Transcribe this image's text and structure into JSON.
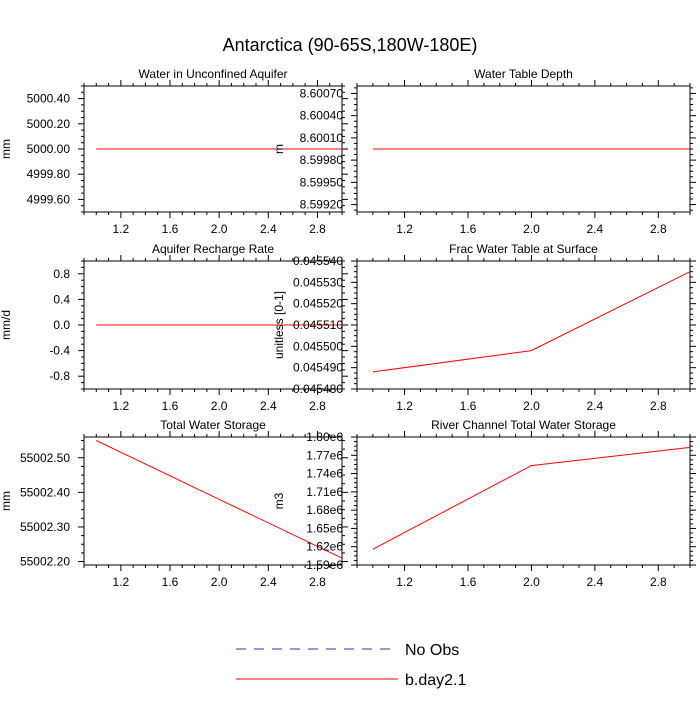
{
  "page": {
    "title": "Antarctica (90-65S,180W-180E)"
  },
  "legend": {
    "items": [
      {
        "label": "No Obs",
        "style": "dashed",
        "color": "#3333aa"
      },
      {
        "label": "b.day2.1",
        "style": "solid",
        "color": "#ff0000"
      }
    ]
  },
  "colors": {
    "series": "#ff0000",
    "no_obs": "#3333aa",
    "axis": "#000000"
  },
  "chart_data": [
    {
      "type": "line",
      "title": "Water in Unconfined Aquifer",
      "xlabel": "",
      "ylabel": "mm",
      "xlim": [
        0.9,
        3.0
      ],
      "ylim": [
        4999.5,
        5000.5
      ],
      "xticks": [
        1.2,
        1.6,
        2.0,
        2.4,
        2.8
      ],
      "xtick_labels": [
        "1.2",
        "1.6",
        "2.0",
        "2.4",
        "2.8"
      ],
      "yticks": [
        4999.6,
        4999.8,
        5000.0,
        5000.2,
        5000.4
      ],
      "ytick_labels": [
        "4999.60",
        "4999.80",
        "5000.00",
        "5000.20",
        "5000.40"
      ],
      "series": [
        {
          "name": "b.day2.1",
          "x": [
            1.0,
            2.0,
            3.0
          ],
          "y": [
            5000.0,
            5000.0,
            5000.0
          ]
        }
      ]
    },
    {
      "type": "line",
      "title": "Water Table Depth",
      "xlabel": "",
      "ylabel": "m",
      "xlim": [
        0.9,
        3.0
      ],
      "ylim": [
        8.5991,
        8.6008
      ],
      "xticks": [
        1.2,
        1.6,
        2.0,
        2.4,
        2.8
      ],
      "xtick_labels": [
        "1.2",
        "1.6",
        "2.0",
        "2.4",
        "2.8"
      ],
      "yticks": [
        8.5992,
        8.5995,
        8.5998,
        8.6001,
        8.6004,
        8.6007
      ],
      "ytick_labels": [
        "8.59920",
        "8.59950",
        "8.59980",
        "8.60010",
        "8.60040",
        "8.60070"
      ],
      "series": [
        {
          "name": "b.day2.1",
          "x": [
            1.0,
            2.0,
            3.0
          ],
          "y": [
            8.59995,
            8.59995,
            8.59995
          ]
        }
      ]
    },
    {
      "type": "line",
      "title": "Aquifer Recharge Rate",
      "xlabel": "",
      "ylabel": "mm/d",
      "xlim": [
        0.9,
        3.0
      ],
      "ylim": [
        -1.0,
        1.0
      ],
      "xticks": [
        1.2,
        1.6,
        2.0,
        2.4,
        2.8
      ],
      "xtick_labels": [
        "1.2",
        "1.6",
        "2.0",
        "2.4",
        "2.8"
      ],
      "yticks": [
        -0.8,
        -0.4,
        0.0,
        0.4,
        0.8
      ],
      "ytick_labels": [
        "-0.8",
        "-0.4",
        "0.0",
        "0.4",
        "0.8"
      ],
      "series": [
        {
          "name": "b.day2.1",
          "x": [
            1.0,
            2.0,
            3.0
          ],
          "y": [
            0.0,
            0.0,
            0.0
          ]
        }
      ]
    },
    {
      "type": "line",
      "title": "Frac Water Table at Surface",
      "xlabel": "",
      "ylabel": "unitless [0-1]",
      "xlim": [
        0.9,
        3.0
      ],
      "ylim": [
        0.04548,
        0.04554
      ],
      "xticks": [
        1.2,
        1.6,
        2.0,
        2.4,
        2.8
      ],
      "xtick_labels": [
        "1.2",
        "1.6",
        "2.0",
        "2.4",
        "2.8"
      ],
      "yticks": [
        0.04548,
        0.04549,
        0.0455,
        0.04551,
        0.04552,
        0.04553,
        0.04554
      ],
      "ytick_labels": [
        "0.045480",
        "0.045490",
        "0.045500",
        "0.045510",
        "0.045520",
        "0.045530",
        "0.045540"
      ],
      "series": [
        {
          "name": "b.day2.1",
          "x": [
            1.0,
            2.0,
            3.0
          ],
          "y": [
            0.045488,
            0.045498,
            0.045535
          ]
        }
      ]
    },
    {
      "type": "line",
      "title": "Total Water Storage",
      "xlabel": "",
      "ylabel": "mm",
      "xlim": [
        0.9,
        3.0
      ],
      "ylim": [
        55002.19,
        55002.56
      ],
      "xticks": [
        1.2,
        1.6,
        2.0,
        2.4,
        2.8
      ],
      "xtick_labels": [
        "1.2",
        "1.6",
        "2.0",
        "2.4",
        "2.8"
      ],
      "yticks": [
        55002.2,
        55002.3,
        55002.4,
        55002.5
      ],
      "ytick_labels": [
        "55002.20",
        "55002.30",
        "55002.40",
        "55002.50"
      ],
      "series": [
        {
          "name": "b.day2.1",
          "x": [
            1.0,
            2.0,
            3.0
          ],
          "y": [
            55002.55,
            55002.38,
            55002.21
          ]
        }
      ]
    },
    {
      "type": "line",
      "title": "River Channel Total Water Storage",
      "xlabel": "",
      "ylabel": "m3",
      "xlim": [
        0.9,
        3.0
      ],
      "ylim": [
        1590000,
        1800000
      ],
      "xticks": [
        1.2,
        1.6,
        2.0,
        2.4,
        2.8
      ],
      "xtick_labels": [
        "1.2",
        "1.6",
        "2.0",
        "2.4",
        "2.8"
      ],
      "yticks": [
        1590000,
        1620000,
        1650000,
        1680000,
        1710000,
        1740000,
        1770000,
        1800000
      ],
      "ytick_labels": [
        "1.59e6",
        "1.62e6",
        "1.65e6",
        "1.68e6",
        "1.71e6",
        "1.74e6",
        "1.77e6",
        "1.80e6"
      ],
      "series": [
        {
          "name": "b.day2.1",
          "x": [
            1.0,
            2.0,
            3.0
          ],
          "y": [
            1616000,
            1753000,
            1783000
          ]
        }
      ]
    }
  ]
}
